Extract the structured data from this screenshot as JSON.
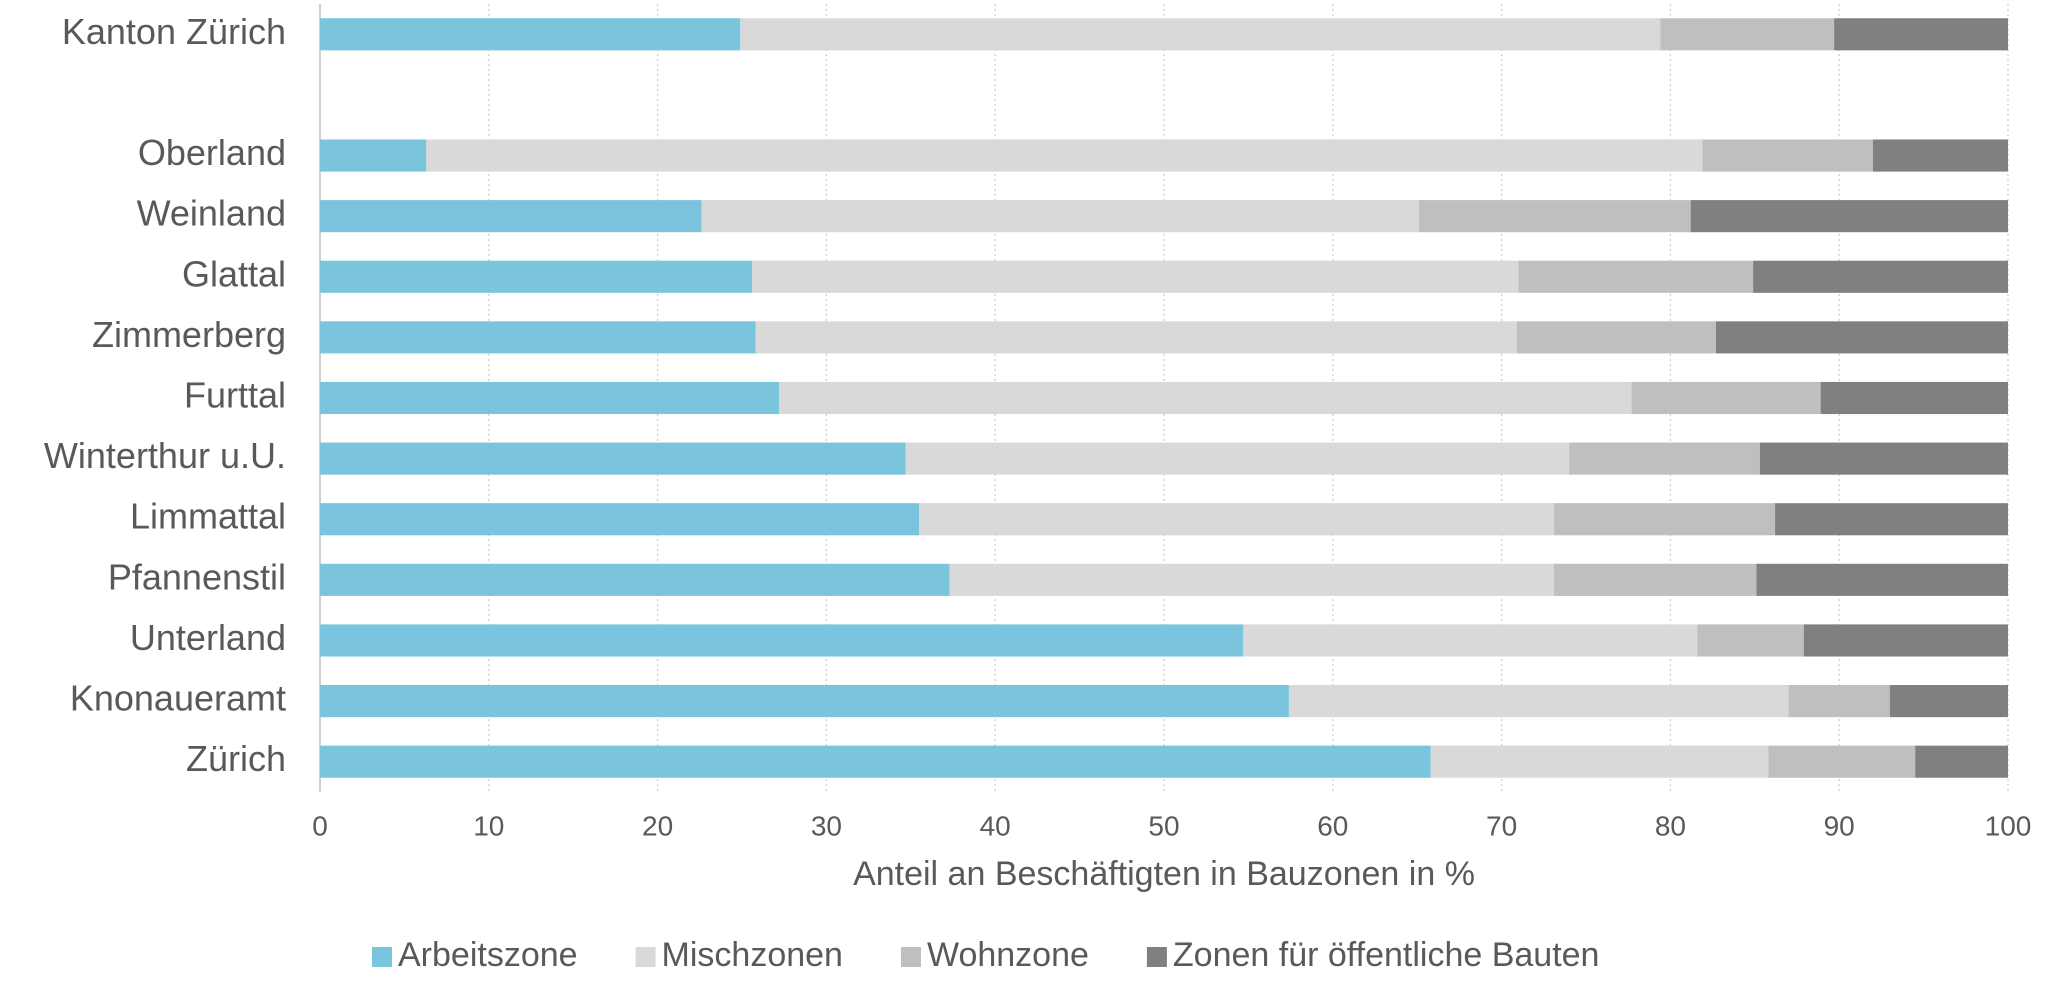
{
  "chart_data": {
    "type": "stacked_bar_horizontal",
    "xlabel": "Anteil an Beschäftigten in Bauzonen in %",
    "categories": [
      "Kanton Zürich",
      null,
      "Oberland",
      "Weinland",
      "Glattal",
      "Zimmerberg",
      "Furttal",
      "Winterthur u.U.",
      "Limmattal",
      "Pfannenstil",
      "Unterland",
      "Knonaueramt",
      "Zürich"
    ],
    "series": [
      {
        "name": "Arbeitszone",
        "color": "#7ac4de",
        "values": [
          24.9,
          null,
          6.3,
          22.6,
          25.6,
          25.8,
          27.2,
          34.7,
          35.5,
          37.3,
          54.7,
          57.4,
          65.8
        ]
      },
      {
        "name": "Mischzonen",
        "color": "#d9d9d9",
        "values": [
          54.5,
          null,
          75.6,
          42.5,
          45.4,
          45.1,
          50.5,
          39.3,
          37.6,
          35.8,
          26.9,
          29.6,
          20.0
        ]
      },
      {
        "name": "Wohnzone",
        "color": "#bfbfbf",
        "values": [
          10.3,
          null,
          10.1,
          16.1,
          13.9,
          11.8,
          11.2,
          11.3,
          13.1,
          12.0,
          6.3,
          6.0,
          8.7
        ]
      },
      {
        "name": "Zonen für öffentliche Bauten",
        "color": "#808080",
        "values": [
          10.3,
          null,
          8.0,
          18.8,
          15.1,
          17.3,
          11.1,
          14.7,
          13.8,
          14.9,
          12.1,
          7.0,
          5.5
        ]
      }
    ],
    "xlim": [
      0,
      100
    ],
    "xticks": [
      0,
      10,
      20,
      30,
      40,
      50,
      60,
      70,
      80,
      90,
      100
    ],
    "grid": true,
    "legend": "bottom"
  }
}
